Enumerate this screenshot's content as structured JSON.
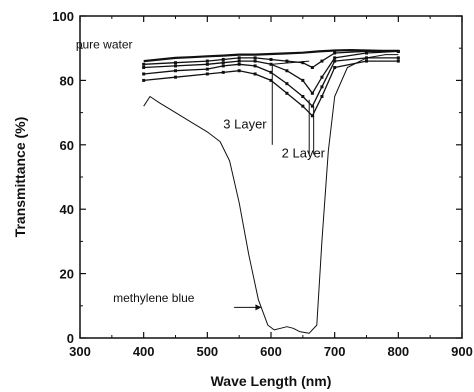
{
  "chart_data": {
    "type": "line",
    "title": "",
    "xlabel": "Wave Length (nm)",
    "ylabel": "Transmittance (%)",
    "xlim": [
      300,
      900
    ],
    "ylim": [
      0,
      100
    ],
    "xticks": [
      300,
      400,
      500,
      600,
      700,
      800,
      900
    ],
    "yticks": [
      0,
      20,
      40,
      60,
      80,
      100
    ],
    "grid": false,
    "legend": "none",
    "series": [
      {
        "name": "pure water",
        "x": [
          400,
          425,
          450,
          475,
          500,
          525,
          550,
          575,
          600,
          625,
          650,
          675,
          700,
          725,
          750,
          775,
          800
        ],
        "y": [
          86,
          86.5,
          87,
          87.2,
          87.5,
          87.7,
          88,
          88,
          88.2,
          88.4,
          88.6,
          89,
          89.3,
          89.4,
          89.3,
          89.2,
          89.2
        ]
      },
      {
        "name": "",
        "x": [
          400,
          450,
          500,
          525,
          550,
          575,
          600,
          625,
          650,
          665,
          680,
          700,
          750,
          800
        ],
        "y": [
          85,
          85.5,
          86,
          86.5,
          87,
          87,
          86.5,
          86,
          85.5,
          84,
          86,
          88.5,
          89,
          89
        ]
      },
      {
        "name": "",
        "x": [
          400,
          450,
          500,
          525,
          550,
          575,
          600,
          625,
          650,
          665,
          680,
          700,
          750,
          800
        ],
        "y": [
          84,
          84.5,
          85,
          85.5,
          86,
          86,
          85,
          83,
          80,
          76,
          81,
          87,
          88.5,
          89
        ]
      },
      {
        "name": "3 Layer",
        "x": [
          400,
          450,
          500,
          525,
          550,
          575,
          600,
          625,
          650,
          665,
          680,
          700,
          750,
          800
        ],
        "y": [
          82,
          83,
          83.5,
          84.5,
          85,
          84.5,
          82.5,
          79,
          75,
          72,
          78,
          86,
          87,
          87
        ]
      },
      {
        "name": "2 Layer",
        "x": [
          400,
          450,
          500,
          525,
          550,
          575,
          600,
          625,
          650,
          665,
          680,
          700,
          750,
          800
        ],
        "y": [
          80,
          81,
          82,
          82.5,
          83,
          82,
          80,
          76,
          72,
          69,
          75,
          84,
          86,
          86
        ]
      },
      {
        "name": "methylene blue",
        "x": [
          400,
          410,
          425,
          450,
          475,
          500,
          520,
          535,
          550,
          565,
          580,
          595,
          605,
          615,
          625,
          635,
          645,
          660,
          672,
          680,
          690,
          700,
          720,
          750,
          780,
          800
        ],
        "y": [
          72,
          75,
          73,
          70,
          67,
          64,
          61,
          55,
          42,
          26,
          12,
          4,
          2.5,
          3,
          3.5,
          3,
          2,
          1.5,
          4,
          30,
          58,
          75,
          84,
          87,
          88,
          88
        ]
      }
    ],
    "annotations": [
      {
        "text": "pure water",
        "x": 383,
        "y": 88
      },
      {
        "text": "3 Layer",
        "x": 580,
        "y": 66
      },
      {
        "text": "2 Layer",
        "x": 645,
        "y": 57
      },
      {
        "text": "methylene blue",
        "x": 352,
        "y": 12.5
      }
    ]
  }
}
